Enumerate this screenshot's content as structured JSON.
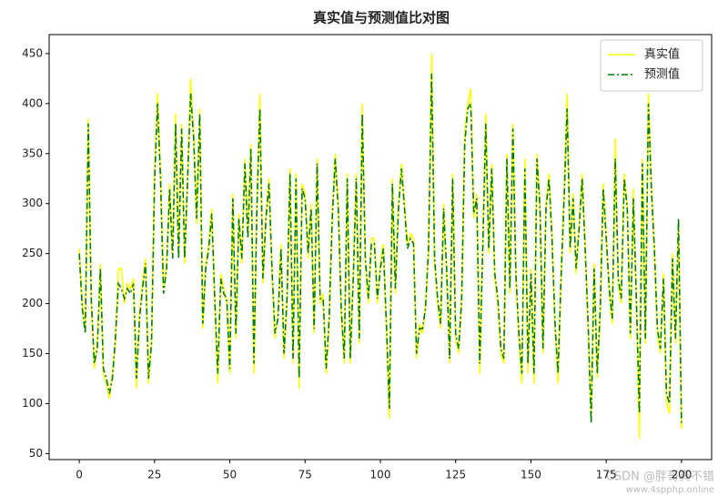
{
  "chart_data": {
    "type": "line",
    "title": "真实值与预测值比对图",
    "x": [
      0,
      1,
      2,
      3,
      4,
      5,
      6,
      7,
      8,
      9,
      10,
      11,
      12,
      13,
      14,
      15,
      16,
      17,
      18,
      19,
      20,
      21,
      22,
      23,
      24,
      25,
      26,
      27,
      28,
      29,
      30,
      31,
      32,
      33,
      34,
      35,
      36,
      37,
      38,
      39,
      40,
      41,
      42,
      43,
      44,
      45,
      46,
      47,
      48,
      49,
      50,
      51,
      52,
      53,
      54,
      55,
      56,
      57,
      58,
      59,
      60,
      61,
      62,
      63,
      64,
      65,
      66,
      67,
      68,
      69,
      70,
      71,
      72,
      73,
      74,
      75,
      76,
      77,
      78,
      79,
      80,
      81,
      82,
      83,
      84,
      85,
      86,
      87,
      88,
      89,
      90,
      91,
      92,
      93,
      94,
      95,
      96,
      97,
      98,
      99,
      100,
      101,
      102,
      103,
      104,
      105,
      106,
      107,
      108,
      109,
      110,
      111,
      112,
      113,
      114,
      115,
      116,
      117,
      118,
      119,
      120,
      121,
      122,
      123,
      124,
      125,
      126,
      127,
      128,
      129,
      130,
      131,
      132,
      133,
      134,
      135,
      136,
      137,
      138,
      139,
      140,
      141,
      142,
      143,
      144,
      145,
      146,
      147,
      148,
      149,
      150,
      151,
      152,
      153,
      154,
      155,
      156,
      157,
      158,
      159,
      160,
      161,
      162,
      163,
      164,
      165,
      166,
      167,
      168,
      169,
      170,
      171,
      172,
      173,
      174,
      175,
      176,
      177,
      178,
      179,
      180,
      181,
      182,
      183,
      184,
      185,
      186,
      187,
      188,
      189,
      190,
      191,
      192,
      193,
      194,
      195,
      196,
      197,
      198,
      199,
      200
    ],
    "series": [
      {
        "name": "真实值",
        "color": "#ffff00",
        "style": "solid",
        "values": [
          255,
          200,
          175,
          385,
          200,
          135,
          160,
          240,
          130,
          120,
          105,
          130,
          160,
          235,
          235,
          200,
          220,
          215,
          225,
          115,
          190,
          220,
          245,
          120,
          165,
          330,
          410,
          330,
          215,
          240,
          320,
          250,
          390,
          250,
          380,
          240,
          330,
          425,
          370,
          280,
          395,
          175,
          240,
          260,
          295,
          200,
          120,
          230,
          215,
          200,
          130,
          310,
          165,
          290,
          240,
          345,
          270,
          360,
          130,
          300,
          410,
          220,
          290,
          325,
          230,
          165,
          190,
          260,
          145,
          200,
          335,
          140,
          330,
          115,
          320,
          310,
          245,
          300,
          170,
          345,
          200,
          210,
          130,
          180,
          290,
          350,
          300,
          190,
          140,
          330,
          140,
          230,
          330,
          160,
          400,
          240,
          200,
          265,
          265,
          200,
          240,
          260,
          175,
          85,
          325,
          210,
          300,
          340,
          300,
          260,
          270,
          265,
          145,
          180,
          170,
          200,
          250,
          450,
          240,
          200,
          175,
          300,
          230,
          140,
          330,
          165,
          150,
          200,
          370,
          400,
          415,
          285,
          310,
          130,
          260,
          390,
          250,
          340,
          225,
          200,
          150,
          140,
          350,
          210,
          380,
          225,
          165,
          120,
          345,
          130,
          235,
          120,
          350,
          300,
          150,
          300,
          330,
          270,
          175,
          120,
          220,
          310,
          410,
          250,
          310,
          230,
          280,
          330,
          260,
          175,
          85,
          240,
          125,
          190,
          320,
          270,
          210,
          180,
          365,
          220,
          200,
          330,
          300,
          165,
          315,
          200,
          65,
          345,
          160,
          410,
          320,
          250,
          170,
          150,
          230,
          100,
          90,
          250,
          160,
          280,
          75
        ]
      },
      {
        "name": "预测值",
        "color": "#007f00",
        "style": "dashdot",
        "values": [
          250,
          195,
          170,
          380,
          205,
          140,
          155,
          235,
          135,
          125,
          110,
          125,
          165,
          220,
          215,
          205,
          215,
          210,
          220,
          125,
          185,
          215,
          240,
          125,
          160,
          320,
          400,
          325,
          210,
          235,
          315,
          245,
          380,
          245,
          375,
          245,
          325,
          410,
          365,
          285,
          390,
          180,
          235,
          255,
          290,
          205,
          130,
          225,
          210,
          205,
          135,
          305,
          170,
          285,
          245,
          340,
          265,
          355,
          140,
          295,
          395,
          225,
          285,
          320,
          235,
          170,
          185,
          255,
          150,
          205,
          330,
          145,
          325,
          125,
          315,
          305,
          250,
          295,
          175,
          340,
          205,
          205,
          135,
          185,
          285,
          345,
          295,
          195,
          145,
          325,
          145,
          225,
          325,
          165,
          390,
          245,
          205,
          260,
          260,
          205,
          235,
          255,
          180,
          95,
          320,
          215,
          295,
          335,
          295,
          255,
          265,
          260,
          150,
          175,
          175,
          195,
          255,
          430,
          245,
          205,
          180,
          295,
          235,
          145,
          325,
          170,
          155,
          205,
          360,
          395,
          400,
          290,
          305,
          140,
          255,
          380,
          255,
          335,
          230,
          205,
          155,
          145,
          345,
          215,
          375,
          230,
          170,
          130,
          335,
          140,
          230,
          130,
          345,
          295,
          155,
          295,
          325,
          265,
          180,
          130,
          225,
          305,
          395,
          255,
          305,
          235,
          275,
          325,
          255,
          180,
          80,
          235,
          130,
          195,
          315,
          265,
          215,
          185,
          345,
          225,
          205,
          325,
          295,
          170,
          305,
          205,
          90,
          340,
          165,
          400,
          315,
          255,
          175,
          155,
          225,
          110,
          100,
          245,
          165,
          285,
          80
        ]
      }
    ],
    "xlim": [
      -10,
      210
    ],
    "xticks": [
      0,
      25,
      50,
      75,
      100,
      125,
      150,
      175,
      200
    ],
    "ylim": [
      44,
      469
    ],
    "yticks": [
      50,
      100,
      150,
      200,
      250,
      300,
      350,
      400,
      450
    ],
    "legend": "upper right",
    "annotations": [
      "CSDN @胖哥真不错",
      "www.4spphp.online"
    ]
  }
}
